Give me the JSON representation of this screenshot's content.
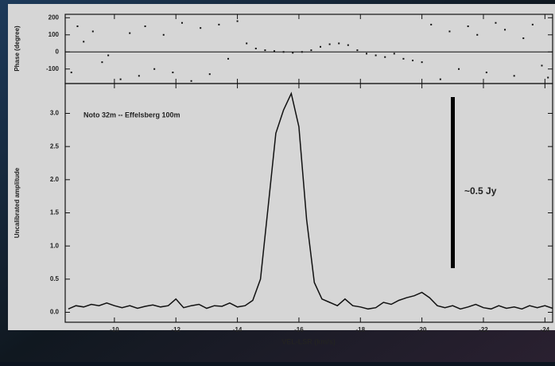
{
  "chart_data": [
    {
      "type": "scatter",
      "y_label": "Phase (degree)",
      "x": [
        -8.6,
        -8.8,
        -9.0,
        -9.3,
        -9.6,
        -9.8,
        -10.2,
        -10.5,
        -10.8,
        -11.0,
        -11.3,
        -11.6,
        -11.9,
        -12.2,
        -12.5,
        -12.8,
        -13.1,
        -13.4,
        -13.7,
        -14.0,
        -14.3,
        -14.6,
        -14.9,
        -15.2,
        -15.5,
        -15.8,
        -16.1,
        -16.4,
        -16.7,
        -17.0,
        -17.3,
        -17.6,
        -17.9,
        -18.2,
        -18.5,
        -18.8,
        -19.1,
        -19.4,
        -19.7,
        -20.0,
        -20.3,
        -20.6,
        -20.9,
        -21.2,
        -21.5,
        -21.8,
        -22.1,
        -22.4,
        -22.7,
        -23.0,
        -23.3,
        -23.6,
        -23.9,
        -24.1
      ],
      "values": [
        -120,
        150,
        60,
        120,
        -60,
        -20,
        -160,
        110,
        -140,
        150,
        -100,
        100,
        -120,
        170,
        -170,
        140,
        -130,
        160,
        -40,
        180,
        50,
        20,
        10,
        5,
        0,
        -5,
        0,
        10,
        30,
        45,
        50,
        40,
        10,
        -10,
        -20,
        -30,
        -10,
        -40,
        -50,
        -60,
        160,
        -160,
        120,
        -100,
        150,
        100,
        -120,
        170,
        130,
        -140,
        80,
        160,
        -80,
        -150
      ],
      "color": "#111111",
      "xlim": [
        -8.4,
        -24.25
      ],
      "ylim": [
        -185,
        220
      ],
      "yticks": [
        -100,
        0,
        100,
        200
      ],
      "zero_line": true
    },
    {
      "type": "line",
      "title": "Noto 32m -- Effelsberg 100m",
      "annotation": "~0.5 Jy",
      "x_label": "VEL-LSR (km/s)",
      "y_label": "Uncalibrated amplitude",
      "x": [
        -8.5,
        -8.75,
        -9,
        -9.25,
        -9.5,
        -9.75,
        -10,
        -10.25,
        -10.5,
        -10.75,
        -11,
        -11.25,
        -11.5,
        -11.75,
        -12,
        -12.25,
        -12.5,
        -12.75,
        -13,
        -13.25,
        -13.5,
        -13.75,
        -14,
        -14.25,
        -14.5,
        -14.75,
        -15,
        -15.25,
        -15.5,
        -15.75,
        -16,
        -16.25,
        -16.5,
        -16.75,
        -17,
        -17.25,
        -17.5,
        -17.75,
        -18,
        -18.25,
        -18.5,
        -18.75,
        -19,
        -19.25,
        -19.5,
        -19.75,
        -20,
        -20.25,
        -20.5,
        -20.75,
        -21,
        -21.25,
        -21.5,
        -21.75,
        -22,
        -22.25,
        -22.5,
        -22.75,
        -23,
        -23.25,
        -23.5,
        -23.75,
        -24,
        -24.25
      ],
      "values": [
        0.05,
        0.1,
        0.08,
        0.12,
        0.1,
        0.14,
        0.1,
        0.07,
        0.1,
        0.06,
        0.09,
        0.11,
        0.08,
        0.1,
        0.2,
        0.07,
        0.1,
        0.12,
        0.06,
        0.1,
        0.09,
        0.14,
        0.08,
        0.1,
        0.18,
        0.5,
        1.6,
        2.7,
        3.05,
        3.3,
        2.8,
        1.4,
        0.45,
        0.2,
        0.15,
        0.1,
        0.2,
        0.1,
        0.08,
        0.05,
        0.07,
        0.15,
        0.12,
        0.18,
        0.22,
        0.25,
        0.3,
        0.22,
        0.1,
        0.07,
        0.1,
        0.05,
        0.08,
        0.12,
        0.07,
        0.05,
        0.1,
        0.06,
        0.08,
        0.05,
        0.1,
        0.07,
        0.1,
        0.06
      ],
      "color": "#111111",
      "xlim": [
        -8.4,
        -24.25
      ],
      "ylim": [
        -0.15,
        3.45
      ],
      "xticks": [
        -10,
        -12,
        -14,
        -16,
        -18,
        -20,
        -22,
        -24
      ],
      "yticks": [
        {
          "value": 0,
          "label": "0.0"
        },
        0.5,
        {
          "value": 1,
          "label": "1.0"
        },
        1.5,
        {
          "value": 2,
          "label": "2.0"
        },
        2.5,
        {
          "value": 3,
          "label": "3.0"
        }
      ]
    }
  ]
}
